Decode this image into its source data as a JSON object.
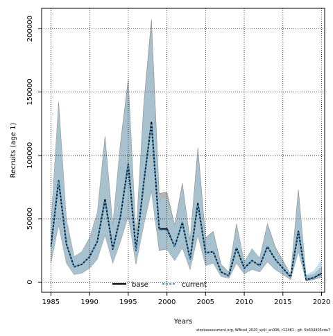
{
  "chart_data": {
    "type": "line",
    "title": "",
    "xlabel": "Years",
    "ylabel": "Recruits (age 1)",
    "xlim": [
      1983.8,
      2020.4
    ],
    "ylim": [
      -8000,
      216000
    ],
    "x_ticks": [
      1985,
      1990,
      1995,
      2000,
      2005,
      2010,
      2015,
      2020
    ],
    "y_ticks": [
      0,
      50000,
      100000,
      150000,
      200000
    ],
    "grid": true,
    "grid_style": "dotted",
    "legend": {
      "placement": "bottom-center",
      "entries": [
        "base",
        "current"
      ]
    },
    "years": [
      1985,
      1986,
      1987,
      1988,
      1989,
      1990,
      1991,
      1992,
      1993,
      1994,
      1995,
      1996,
      1997,
      1998,
      1999,
      2000,
      2001,
      2002,
      2003,
      2004,
      2005,
      2006,
      2007,
      2008,
      2009,
      2010,
      2011,
      2012,
      2013,
      2014,
      2015,
      2016,
      2017,
      2018,
      2019,
      2020
    ],
    "series": [
      {
        "name": "base",
        "color": "#000000",
        "values": [
          28000,
          80000,
          30000,
          12000,
          14000,
          20000,
          32000,
          65000,
          26000,
          52000,
          93000,
          25000,
          78000,
          126000,
          42000,
          42000,
          28000,
          47000,
          18000,
          62000,
          23000,
          24000,
          8000,
          5000,
          27000,
          11000,
          17000,
          13000,
          28000,
          18000,
          11000,
          4000,
          40000,
          2000,
          3500,
          7000
        ],
        "lower": [
          15000,
          45000,
          15000,
          6000,
          7000,
          11000,
          18000,
          37000,
          15000,
          32000,
          52000,
          14000,
          45000,
          72000,
          25000,
          26000,
          17000,
          27000,
          10000,
          37000,
          13000,
          15000,
          4500,
          3000,
          15000,
          6500,
          10000,
          8000,
          16000,
          10000,
          6000,
          2000,
          24000,
          800,
          2000,
          4000
        ],
        "upper": [
          45000,
          142000,
          50000,
          20000,
          24000,
          35000,
          55000,
          115000,
          45000,
          110000,
          160000,
          38000,
          140000,
          207000,
          70000,
          71000,
          45000,
          78000,
          33000,
          106000,
          35000,
          40000,
          14000,
          8000,
          46000,
          16000,
          26000,
          19000,
          46000,
          28000,
          17000,
          6000,
          73000,
          5000,
          6000,
          12000
        ]
      },
      {
        "name": "current",
        "color": "#4e9fd1",
        "values": [
          28500,
          79000,
          30000,
          12000,
          14000,
          20000,
          32000,
          64000,
          26000,
          52000,
          92000,
          25000,
          78000,
          125000,
          41000,
          41000,
          28000,
          47000,
          18000,
          61000,
          23000,
          24000,
          8000,
          5000,
          27000,
          11000,
          17000,
          13000,
          28000,
          18000,
          11000,
          4000,
          39000,
          2200,
          3800,
          7500
        ],
        "lower": [
          15000,
          45000,
          15000,
          6000,
          7000,
          11000,
          18000,
          37000,
          15000,
          32000,
          52000,
          14000,
          45000,
          72000,
          26000,
          26000,
          17000,
          27000,
          10000,
          37000,
          13000,
          15000,
          4500,
          3000,
          15000,
          6500,
          10000,
          8000,
          16000,
          10000,
          6000,
          2000,
          23000,
          1000,
          2200,
          4500
        ],
        "upper": [
          45000,
          140000,
          50000,
          20000,
          24000,
          35000,
          55000,
          113000,
          45000,
          108000,
          158000,
          38000,
          138000,
          200000,
          66000,
          66000,
          44000,
          76000,
          32000,
          102000,
          34000,
          39000,
          13000,
          8000,
          45000,
          16000,
          27000,
          19000,
          45000,
          27000,
          16000,
          6000,
          70000,
          6000,
          9000,
          18000
        ]
      }
    ]
  },
  "footer": {
    "caption": "stockassessment.org, WBcod_2020_split_an006, r12481 , git: 5b334405cda7"
  }
}
